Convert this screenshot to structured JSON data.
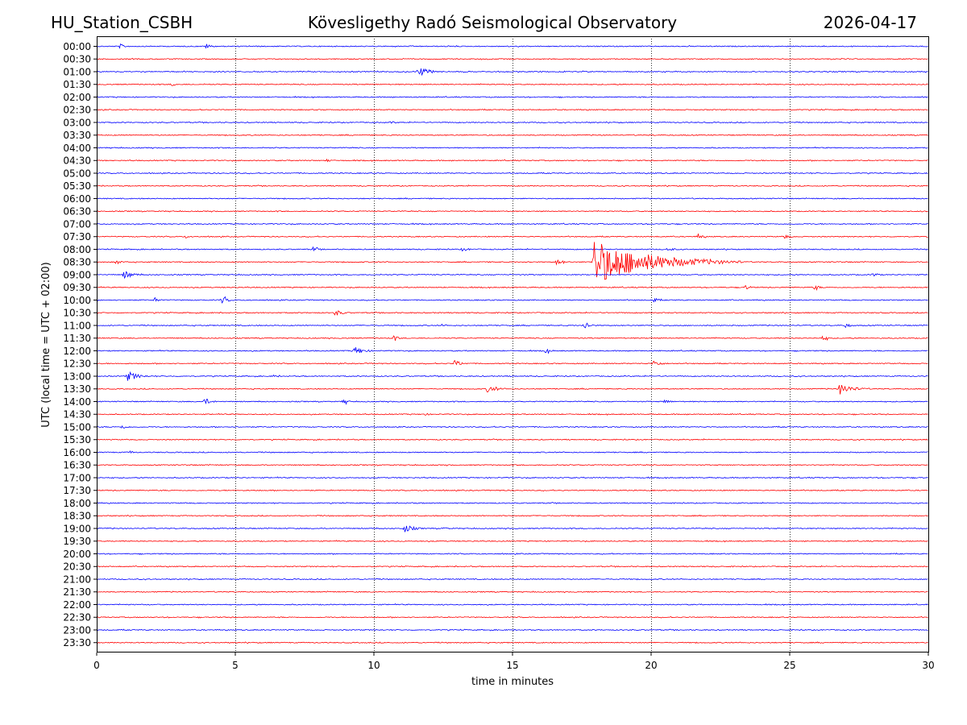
{
  "header": {
    "station": "HU_Station_CSBH",
    "title": "Kövesligethy Radó Seismological Observatory",
    "date": "2026-04-17"
  },
  "chart_data": {
    "type": "line",
    "title": "Kövesligethy Radó Seismological Observatory",
    "xlabel": "time in minutes",
    "ylabel": "UTC (local time = UTC + 02:00)",
    "xlim": [
      0,
      30
    ],
    "x_ticks": [
      "0",
      "5",
      "10",
      "15",
      "20",
      "25",
      "30"
    ],
    "x_tick_values": [
      0,
      5,
      10,
      15,
      20,
      25,
      30
    ],
    "grid": "vertical dotted at 5-minute ticks",
    "series_colors": [
      "#0000ff",
      "#ff0000"
    ],
    "rows": [
      "00:00",
      "00:30",
      "01:00",
      "01:30",
      "02:00",
      "02:30",
      "03:00",
      "03:30",
      "04:00",
      "04:30",
      "05:00",
      "05:30",
      "06:00",
      "06:30",
      "07:00",
      "07:30",
      "08:00",
      "08:30",
      "09:00",
      "09:30",
      "10:00",
      "10:30",
      "11:00",
      "11:30",
      "12:00",
      "12:30",
      "13:00",
      "13:30",
      "14:00",
      "14:30",
      "15:00",
      "15:30",
      "16:00",
      "16:30",
      "17:00",
      "17:30",
      "18:00",
      "18:30",
      "19:00",
      "19:30",
      "20:00",
      "20:30",
      "21:00",
      "21:30",
      "22:00",
      "22:30",
      "23:00",
      "23:30"
    ],
    "events": [
      {
        "row": "00:00",
        "t": 0.85,
        "amp": 3
      },
      {
        "row": "00:00",
        "t": 3.95,
        "amp": 3
      },
      {
        "row": "01:00",
        "t": 11.6,
        "amp": 6
      },
      {
        "row": "01:30",
        "t": 2.7,
        "amp": 2
      },
      {
        "row": "03:00",
        "t": 10.6,
        "amp": 2
      },
      {
        "row": "04:30",
        "t": 8.3,
        "amp": 2
      },
      {
        "row": "07:30",
        "t": 3.2,
        "amp": 2
      },
      {
        "row": "07:30",
        "t": 21.7,
        "amp": 3
      },
      {
        "row": "07:30",
        "t": 24.8,
        "amp": 3
      },
      {
        "row": "08:00",
        "t": 7.8,
        "amp": 3
      },
      {
        "row": "08:00",
        "t": 13.2,
        "amp": 3
      },
      {
        "row": "08:00",
        "t": 20.6,
        "amp": 3
      },
      {
        "row": "08:30",
        "t": 0.7,
        "amp": 3
      },
      {
        "row": "08:30",
        "t": 16.6,
        "amp": 4
      },
      {
        "row": "08:30",
        "t": 17.95,
        "amp": 28
      },
      {
        "row": "08:30",
        "t": 18.3,
        "amp": 8
      },
      {
        "row": "09:00",
        "t": 1.0,
        "amp": 5
      },
      {
        "row": "09:00",
        "t": 28.0,
        "amp": 3
      },
      {
        "row": "09:30",
        "t": 23.4,
        "amp": 3
      },
      {
        "row": "09:30",
        "t": 25.9,
        "amp": 3
      },
      {
        "row": "10:00",
        "t": 2.1,
        "amp": 3
      },
      {
        "row": "10:00",
        "t": 4.5,
        "amp": 4
      },
      {
        "row": "10:00",
        "t": 20.1,
        "amp": 3
      },
      {
        "row": "10:30",
        "t": 8.6,
        "amp": 4
      },
      {
        "row": "11:00",
        "t": 12.4,
        "amp": 2
      },
      {
        "row": "11:00",
        "t": 17.6,
        "amp": 4
      },
      {
        "row": "11:00",
        "t": 27.0,
        "amp": 3
      },
      {
        "row": "11:30",
        "t": 10.7,
        "amp": 3
      },
      {
        "row": "11:30",
        "t": 26.2,
        "amp": 3
      },
      {
        "row": "12:00",
        "t": 9.3,
        "amp": 5
      },
      {
        "row": "12:00",
        "t": 16.2,
        "amp": 3
      },
      {
        "row": "12:30",
        "t": 12.9,
        "amp": 4
      },
      {
        "row": "12:30",
        "t": 20.1,
        "amp": 4
      },
      {
        "row": "13:00",
        "t": 1.1,
        "amp": 6
      },
      {
        "row": "13:00",
        "t": 6.4,
        "amp": 2
      },
      {
        "row": "13:30",
        "t": 14.1,
        "amp": 5
      },
      {
        "row": "13:30",
        "t": 26.8,
        "amp": 7
      },
      {
        "row": "14:00",
        "t": 3.9,
        "amp": 4
      },
      {
        "row": "14:00",
        "t": 8.9,
        "amp": 3
      },
      {
        "row": "14:00",
        "t": 20.5,
        "amp": 3
      },
      {
        "row": "14:30",
        "t": 11.8,
        "amp": 2
      },
      {
        "row": "15:00",
        "t": 0.9,
        "amp": 3
      },
      {
        "row": "16:00",
        "t": 1.2,
        "amp": 2
      },
      {
        "row": "19:00",
        "t": 11.1,
        "amp": 5
      },
      {
        "row": "19:00",
        "t": 12.5,
        "amp": 2
      }
    ]
  }
}
